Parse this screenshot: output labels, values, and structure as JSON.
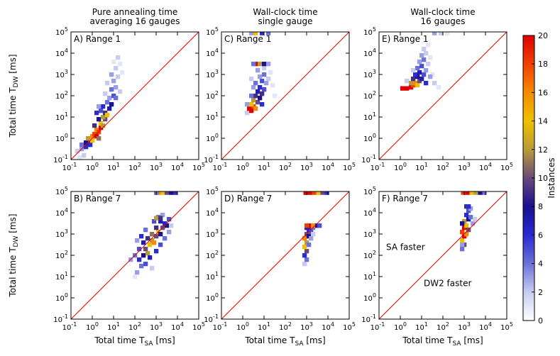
{
  "figure": {
    "colorbar": {
      "label": "Instances",
      "min": 0,
      "max": 20,
      "ticks": [
        "0",
        "2",
        "4",
        "6",
        "8",
        "10",
        "12",
        "14",
        "16",
        "18",
        "20"
      ],
      "colors": [
        "#ffffff",
        "#c7cbf0",
        "#6a72d8",
        "#2a2ad0",
        "#1a1090",
        "#6a4a7a",
        "#b89a38",
        "#f0c000",
        "#f58a00",
        "#f04000",
        "#e00000"
      ]
    },
    "ylabel": "Total time T_DW [ms]",
    "xlabel": "Total time T_SA [ms]"
  },
  "chart_data": [
    {
      "type": "heatmap",
      "id": "A",
      "panel_label": "A) Range 1",
      "column_title": [
        "Pure annealing time",
        "averaging 16 gauges"
      ],
      "xlabel": "Total time T_SA [ms]",
      "ylabel": "Total time T_DW [ms]",
      "x_scale": "log",
      "y_scale": "log",
      "xlim": [
        0.1,
        100000
      ],
      "ylim": [
        0.1,
        100000
      ],
      "x_ticks": [
        "10^-1",
        "10^0",
        "10^1",
        "10^2",
        "10^3",
        "10^4",
        "10^5"
      ],
      "y_ticks": [
        "10^-1",
        "10^0",
        "10^1",
        "10^2",
        "10^3",
        "10^4",
        "10^5"
      ],
      "diagonal": "y = x",
      "cells": [
        [
          -0.7,
          -0.6,
          2
        ],
        [
          -0.5,
          -0.5,
          3
        ],
        [
          -0.5,
          -0.3,
          4
        ],
        [
          -0.3,
          -0.4,
          6
        ],
        [
          -0.3,
          -0.2,
          8
        ],
        [
          -0.1,
          -0.3,
          6
        ],
        [
          -0.1,
          -0.1,
          10
        ],
        [
          -0.2,
          0.0,
          12
        ],
        [
          0.0,
          -0.1,
          14
        ],
        [
          0.0,
          0.1,
          16
        ],
        [
          0.1,
          0.2,
          18
        ],
        [
          0.2,
          0.1,
          20
        ],
        [
          0.2,
          0.4,
          16
        ],
        [
          0.3,
          0.3,
          18
        ],
        [
          0.4,
          0.5,
          20
        ],
        [
          0.4,
          0.7,
          14
        ],
        [
          0.5,
          0.6,
          12
        ],
        [
          0.6,
          0.9,
          10
        ],
        [
          0.1,
          0.6,
          9
        ],
        [
          0.3,
          0.9,
          8
        ],
        [
          0.5,
          1.0,
          12
        ],
        [
          0.6,
          1.2,
          9
        ],
        [
          0.7,
          1.1,
          14
        ],
        [
          0.8,
          1.4,
          7
        ],
        [
          0.4,
          1.3,
          5
        ],
        [
          0.5,
          1.5,
          6
        ],
        [
          0.7,
          1.7,
          4
        ],
        [
          0.9,
          1.6,
          8
        ],
        [
          0.8,
          1.9,
          3
        ],
        [
          1.0,
          2.0,
          5
        ],
        [
          0.6,
          2.1,
          2
        ],
        [
          0.9,
          2.3,
          4
        ],
        [
          1.1,
          2.4,
          3
        ],
        [
          0.7,
          2.6,
          2
        ],
        [
          1.0,
          2.7,
          3
        ],
        [
          1.2,
          2.9,
          2
        ],
        [
          0.9,
          3.0,
          3
        ],
        [
          1.1,
          3.3,
          2
        ],
        [
          1.3,
          3.5,
          1
        ],
        [
          1.0,
          3.6,
          1
        ],
        [
          1.2,
          3.8,
          2
        ],
        [
          1.4,
          3.1,
          1
        ],
        [
          -0.6,
          -0.9,
          1
        ],
        [
          -0.4,
          -0.8,
          2
        ],
        [
          0.2,
          1.2,
          6
        ],
        [
          0.3,
          1.5,
          3
        ],
        [
          1.1,
          1.9,
          4
        ],
        [
          1.3,
          2.2,
          2
        ],
        [
          0.3,
          0.0,
          11
        ]
      ]
    },
    {
      "type": "heatmap",
      "id": "C",
      "panel_label": "C) Range 1",
      "column_title": [
        "Wall-clock time",
        "single gauge"
      ],
      "xlabel": "Total time T_SA [ms]",
      "ylabel": "Total time T_DW [ms]",
      "x_scale": "log",
      "y_scale": "log",
      "xlim": [
        0.1,
        100000
      ],
      "ylim": [
        0.1,
        100000
      ],
      "x_ticks": [
        "10^-1",
        "10^0",
        "10^1",
        "10^2",
        "10^3",
        "10^4",
        "10^5"
      ],
      "y_ticks": [
        "10^-1",
        "10^0",
        "10^1",
        "10^2",
        "10^3",
        "10^4",
        "10^5"
      ],
      "diagonal": "y = x",
      "cells": [
        [
          0.2,
          1.2,
          2
        ],
        [
          0.3,
          1.4,
          20
        ],
        [
          0.4,
          1.3,
          20
        ],
        [
          0.5,
          1.5,
          18
        ],
        [
          0.4,
          1.6,
          14
        ],
        [
          0.6,
          1.4,
          16
        ],
        [
          0.5,
          1.8,
          12
        ],
        [
          0.7,
          1.7,
          10
        ],
        [
          0.6,
          2.0,
          9
        ],
        [
          0.8,
          1.9,
          8
        ],
        [
          0.7,
          2.2,
          7
        ],
        [
          0.9,
          2.1,
          9
        ],
        [
          0.8,
          2.4,
          6
        ],
        [
          1.0,
          2.3,
          5
        ],
        [
          0.6,
          2.6,
          4
        ],
        [
          0.9,
          2.7,
          5
        ],
        [
          1.1,
          2.6,
          3
        ],
        [
          0.8,
          2.9,
          3
        ],
        [
          1.0,
          3.0,
          4
        ],
        [
          1.2,
          2.8,
          2
        ],
        [
          0.7,
          3.2,
          3
        ],
        [
          1.0,
          3.3,
          2
        ],
        [
          0.6,
          3.5,
          20
        ],
        [
          0.8,
          3.5,
          12
        ],
        [
          1.0,
          3.5,
          8
        ],
        [
          0.5,
          3.5,
          4
        ],
        [
          1.2,
          3.5,
          3
        ],
        [
          1.4,
          2.5,
          1
        ],
        [
          1.5,
          2.0,
          1
        ],
        [
          0.2,
          1.6,
          3
        ],
        [
          0.4,
          2.0,
          4
        ],
        [
          0.5,
          2.4,
          3
        ],
        [
          0.4,
          2.8,
          2
        ],
        [
          1.3,
          3.1,
          1
        ],
        [
          0.9,
          1.6,
          6
        ],
        [
          0.6,
          4.95,
          14
        ],
        [
          0.9,
          4.95,
          6
        ],
        [
          1.2,
          4.95,
          4
        ],
        [
          0.4,
          4.95,
          3
        ]
      ]
    },
    {
      "type": "heatmap",
      "id": "E",
      "panel_label": "E) Range 1",
      "column_title": [
        "Wall-clock time",
        "16 gauges"
      ],
      "xlabel": "Total time T_SA [ms]",
      "ylabel": "Total time T_DW [ms]",
      "x_scale": "log",
      "y_scale": "log",
      "xlim": [
        0.1,
        100000
      ],
      "ylim": [
        0.1,
        100000
      ],
      "x_ticks": [
        "10^-1",
        "10^0",
        "10^1",
        "10^2",
        "10^3",
        "10^4",
        "10^5"
      ],
      "y_ticks": [
        "10^-1",
        "10^0",
        "10^1",
        "10^2",
        "10^3",
        "10^4",
        "10^5"
      ],
      "diagonal": "y = x",
      "cells": [
        [
          0.1,
          2.35,
          20
        ],
        [
          0.3,
          2.35,
          20
        ],
        [
          0.5,
          2.4,
          20
        ],
        [
          0.6,
          2.5,
          18
        ],
        [
          0.7,
          2.6,
          16
        ],
        [
          0.8,
          2.5,
          14
        ],
        [
          0.5,
          2.6,
          12
        ],
        [
          0.9,
          2.7,
          10
        ],
        [
          0.6,
          2.8,
          9
        ],
        [
          0.8,
          2.9,
          8
        ],
        [
          1.0,
          2.8,
          7
        ],
        [
          0.7,
          3.0,
          6
        ],
        [
          0.9,
          3.1,
          7
        ],
        [
          1.1,
          3.0,
          5
        ],
        [
          0.8,
          3.3,
          4
        ],
        [
          1.0,
          3.4,
          5
        ],
        [
          1.2,
          3.2,
          3
        ],
        [
          0.9,
          3.6,
          3
        ],
        [
          1.1,
          3.7,
          4
        ],
        [
          1.3,
          3.5,
          2
        ],
        [
          1.0,
          3.9,
          3
        ],
        [
          1.2,
          4.0,
          2
        ],
        [
          1.4,
          3.8,
          1
        ],
        [
          1.1,
          4.2,
          2
        ],
        [
          1.3,
          4.4,
          1
        ],
        [
          0.6,
          3.2,
          2
        ],
        [
          1.5,
          3.0,
          1
        ],
        [
          1.6,
          2.6,
          2
        ],
        [
          1.8,
          2.4,
          1
        ],
        [
          0.3,
          2.7,
          2
        ],
        [
          1.2,
          2.6,
          6
        ],
        [
          1.4,
          2.9,
          3
        ],
        [
          1.6,
          4.95,
          3
        ],
        [
          1.9,
          4.95,
          2
        ],
        [
          2.2,
          4.95,
          1
        ]
      ]
    },
    {
      "type": "heatmap",
      "id": "B",
      "panel_label": "B) Range 7",
      "column_title": [],
      "xlabel": "Total time T_SA [ms]",
      "ylabel": "Total time T_DW [ms]",
      "x_scale": "log",
      "y_scale": "log",
      "xlim": [
        0.1,
        100000
      ],
      "ylim": [
        0.1,
        100000
      ],
      "x_ticks": [
        "10^-1",
        "10^0",
        "10^1",
        "10^2",
        "10^3",
        "10^4",
        "10^5"
      ],
      "y_ticks": [
        "10^-1",
        "10^0",
        "10^1",
        "10^2",
        "10^3",
        "10^4",
        "10^5"
      ],
      "diagonal": "y = x",
      "cells": [
        [
          2.1,
          1.2,
          3
        ],
        [
          2.3,
          1.5,
          4
        ],
        [
          2.2,
          1.8,
          6
        ],
        [
          2.4,
          2.0,
          8
        ],
        [
          2.5,
          2.3,
          10
        ],
        [
          2.6,
          2.1,
          12
        ],
        [
          2.7,
          2.5,
          14
        ],
        [
          2.8,
          2.7,
          12
        ],
        [
          2.9,
          2.6,
          16
        ],
        [
          3.0,
          2.9,
          10
        ],
        [
          3.1,
          3.1,
          14
        ],
        [
          3.2,
          3.0,
          8
        ],
        [
          3.3,
          3.3,
          10
        ],
        [
          3.4,
          3.5,
          6
        ],
        [
          3.5,
          3.4,
          8
        ],
        [
          3.6,
          3.7,
          5
        ],
        [
          3.2,
          3.6,
          7
        ],
        [
          3.0,
          3.3,
          9
        ],
        [
          2.8,
          3.0,
          11
        ],
        [
          2.6,
          2.8,
          9
        ],
        [
          2.4,
          2.6,
          7
        ],
        [
          2.2,
          2.3,
          5
        ],
        [
          2.0,
          2.0,
          4
        ],
        [
          1.8,
          1.8,
          3
        ],
        [
          2.5,
          1.6,
          5
        ],
        [
          2.7,
          1.9,
          7
        ],
        [
          3.0,
          2.2,
          6
        ],
        [
          3.2,
          2.5,
          5
        ],
        [
          3.4,
          2.8,
          4
        ],
        [
          3.6,
          3.1,
          3
        ],
        [
          3.7,
          3.4,
          2
        ],
        [
          3.1,
          3.8,
          4
        ],
        [
          3.3,
          3.9,
          3
        ],
        [
          2.9,
          3.6,
          5
        ],
        [
          3.0,
          3.75,
          12
        ],
        [
          3.2,
          3.75,
          9
        ],
        [
          2.8,
          1.4,
          2
        ],
        [
          2.0,
          1.0,
          1
        ],
        [
          3.1,
          4.95,
          16
        ],
        [
          3.3,
          4.95,
          14
        ],
        [
          3.5,
          4.95,
          10
        ],
        [
          3.7,
          4.95,
          8
        ],
        [
          3.9,
          4.95,
          6
        ],
        [
          3.0,
          4.95,
          4
        ],
        [
          2.3,
          2.9,
          6
        ],
        [
          2.5,
          3.2,
          4
        ],
        [
          2.1,
          2.7,
          3
        ]
      ]
    },
    {
      "type": "heatmap",
      "id": "D",
      "panel_label": "D) Range 7",
      "column_title": [],
      "xlabel": "Total time T_SA [ms]",
      "ylabel": "Total time T_DW [ms]",
      "x_scale": "log",
      "y_scale": "log",
      "xlim": [
        0.1,
        100000
      ],
      "ylim": [
        0.1,
        100000
      ],
      "x_ticks": [
        "10^-1",
        "10^0",
        "10^1",
        "10^2",
        "10^3",
        "10^4",
        "10^5"
      ],
      "y_ticks": [
        "10^-1",
        "10^0",
        "10^1",
        "10^2",
        "10^3",
        "10^4",
        "10^5"
      ],
      "diagonal": "y = x",
      "cells": [
        [
          2.9,
          1.6,
          2
        ],
        [
          3.0,
          1.8,
          4
        ],
        [
          2.9,
          2.0,
          6
        ],
        [
          3.0,
          2.2,
          10
        ],
        [
          2.9,
          2.4,
          14
        ],
        [
          3.0,
          2.6,
          12
        ],
        [
          2.9,
          2.8,
          16
        ],
        [
          3.0,
          3.0,
          10
        ],
        [
          3.1,
          2.9,
          8
        ],
        [
          3.1,
          3.2,
          6
        ],
        [
          3.2,
          3.1,
          5
        ],
        [
          3.0,
          3.3,
          7
        ],
        [
          3.3,
          3.3,
          4
        ],
        [
          3.4,
          3.4,
          3
        ],
        [
          3.1,
          3.4,
          20
        ],
        [
          3.2,
          3.4,
          20
        ],
        [
          3.3,
          3.4,
          16
        ],
        [
          3.0,
          3.4,
          18
        ],
        [
          3.5,
          3.4,
          8
        ],
        [
          3.6,
          3.4,
          5
        ],
        [
          3.1,
          2.5,
          4
        ],
        [
          3.2,
          2.8,
          3
        ],
        [
          3.3,
          3.0,
          2
        ],
        [
          2.95,
          4.95,
          20
        ],
        [
          3.15,
          4.95,
          20
        ],
        [
          3.35,
          4.95,
          18
        ],
        [
          3.55,
          4.95,
          14
        ],
        [
          3.75,
          4.95,
          10
        ],
        [
          3.95,
          4.95,
          6
        ]
      ]
    },
    {
      "type": "heatmap",
      "id": "F",
      "panel_label": "F) Range 7",
      "column_title": [],
      "annotations": [
        "SA faster",
        "DW2 faster"
      ],
      "xlabel": "Total time T_SA [ms]",
      "ylabel": "Total time T_DW [ms]",
      "x_scale": "log",
      "y_scale": "log",
      "xlim": [
        0.1,
        100000
      ],
      "ylim": [
        0.1,
        100000
      ],
      "x_ticks": [
        "10^-1",
        "10^0",
        "10^1",
        "10^2",
        "10^3",
        "10^4",
        "10^5"
      ],
      "y_ticks": [
        "10^-1",
        "10^0",
        "10^1",
        "10^2",
        "10^3",
        "10^4",
        "10^5"
      ],
      "diagonal": "y = x",
      "cells": [
        [
          2.9,
          2.3,
          4
        ],
        [
          3.0,
          2.5,
          10
        ],
        [
          2.9,
          2.7,
          14
        ],
        [
          3.0,
          2.9,
          20
        ],
        [
          2.9,
          3.1,
          18
        ],
        [
          3.0,
          3.3,
          20
        ],
        [
          3.1,
          3.0,
          16
        ],
        [
          3.1,
          3.4,
          14
        ],
        [
          3.2,
          3.2,
          10
        ],
        [
          3.0,
          3.6,
          12
        ],
        [
          3.2,
          3.7,
          8
        ],
        [
          3.1,
          3.9,
          6
        ],
        [
          3.3,
          3.8,
          4
        ],
        [
          3.2,
          4.1,
          5
        ],
        [
          3.3,
          4.2,
          3
        ],
        [
          3.1,
          4.3,
          9
        ],
        [
          3.2,
          4.3,
          6
        ],
        [
          3.4,
          3.5,
          3
        ],
        [
          3.5,
          3.7,
          2
        ],
        [
          2.9,
          3.5,
          8
        ],
        [
          2.9,
          2.5,
          3
        ],
        [
          2.95,
          4.95,
          18
        ],
        [
          3.15,
          4.95,
          20
        ],
        [
          3.35,
          4.95,
          14
        ],
        [
          3.55,
          4.95,
          12
        ],
        [
          3.75,
          4.95,
          8
        ],
        [
          3.95,
          4.95,
          4
        ]
      ]
    }
  ]
}
